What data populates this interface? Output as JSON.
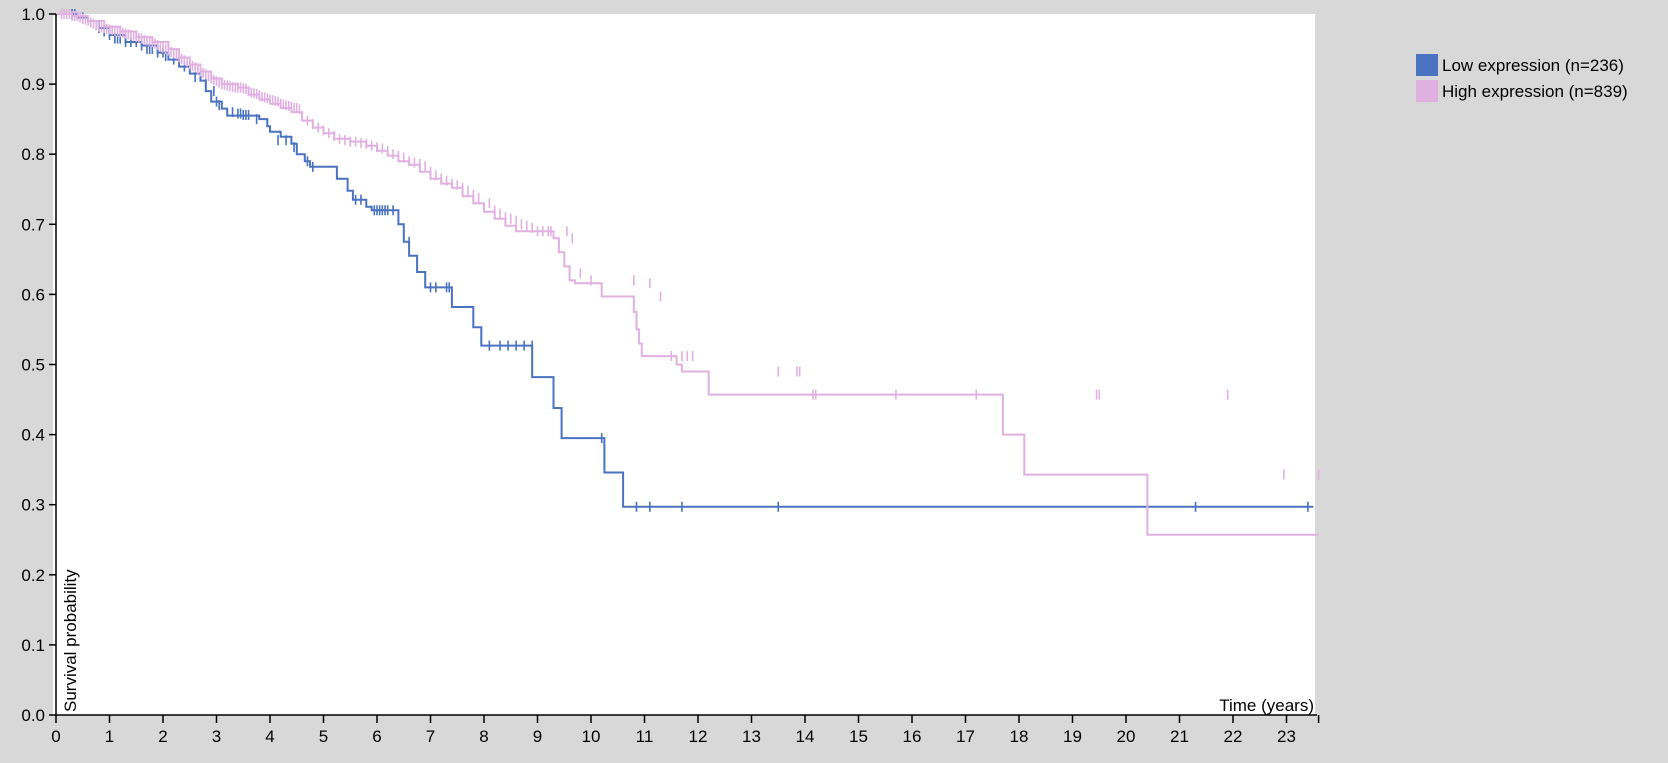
{
  "chart_data": {
    "type": "line",
    "step": true,
    "xlabel": "Time (years)",
    "ylabel": "Survival probability",
    "xlim": [
      0,
      23.6
    ],
    "ylim": [
      0,
      1
    ],
    "x_ticks": [
      "0",
      "1",
      "2",
      "3",
      "4",
      "5",
      "6",
      "7",
      "8",
      "9",
      "10",
      "11",
      "12",
      "13",
      "14",
      "15",
      "16",
      "17",
      "18",
      "19",
      "20",
      "21",
      "22",
      "23"
    ],
    "y_ticks": [
      "0.0",
      "0.1",
      "0.2",
      "0.3",
      "0.4",
      "0.5",
      "0.6",
      "0.7",
      "0.8",
      "0.9",
      "1.0"
    ],
    "legend_position": "top-right, outside plot",
    "series": [
      {
        "name": "Low expression (n=236)",
        "color": "#4a72c0",
        "points": [
          [
            0,
            1.0
          ],
          [
            0.4,
            0.995
          ],
          [
            0.6,
            0.99
          ],
          [
            0.8,
            0.98
          ],
          [
            1.0,
            0.97
          ],
          [
            1.3,
            0.96
          ],
          [
            1.6,
            0.955
          ],
          [
            1.9,
            0.945
          ],
          [
            2.1,
            0.935
          ],
          [
            2.3,
            0.925
          ],
          [
            2.5,
            0.915
          ],
          [
            2.7,
            0.905
          ],
          [
            2.8,
            0.89
          ],
          [
            2.9,
            0.875
          ],
          [
            3.1,
            0.865
          ],
          [
            3.2,
            0.855
          ],
          [
            3.8,
            0.85
          ],
          [
            3.95,
            0.84
          ],
          [
            4.0,
            0.832
          ],
          [
            4.2,
            0.825
          ],
          [
            4.4,
            0.815
          ],
          [
            4.5,
            0.8
          ],
          [
            4.65,
            0.79
          ],
          [
            4.75,
            0.782
          ],
          [
            5.25,
            0.765
          ],
          [
            5.45,
            0.748
          ],
          [
            5.55,
            0.735
          ],
          [
            5.8,
            0.725
          ],
          [
            5.9,
            0.72
          ],
          [
            6.4,
            0.7
          ],
          [
            6.5,
            0.675
          ],
          [
            6.6,
            0.655
          ],
          [
            6.75,
            0.632
          ],
          [
            6.9,
            0.61
          ],
          [
            7.4,
            0.582
          ],
          [
            7.8,
            0.553
          ],
          [
            7.95,
            0.527
          ],
          [
            8.9,
            0.482
          ],
          [
            9.3,
            0.438
          ],
          [
            9.45,
            0.395
          ],
          [
            10.25,
            0.346
          ],
          [
            10.6,
            0.297
          ],
          [
            23.5,
            0.297
          ]
        ],
        "censor_x": [
          0.3,
          0.35,
          0.5,
          0.8,
          0.9,
          1.0,
          1.1,
          1.15,
          1.2,
          1.3,
          1.4,
          1.5,
          1.6,
          1.7,
          1.75,
          1.8,
          1.9,
          2.0,
          2.05,
          2.2,
          2.4,
          2.6,
          2.8,
          2.95,
          3.0,
          3.05,
          3.3,
          3.4,
          3.45,
          3.5,
          3.55,
          3.6,
          3.75,
          4.15,
          4.3,
          4.45,
          4.7,
          4.8,
          5.6,
          5.7,
          5.95,
          6.0,
          6.05,
          6.1,
          6.15,
          6.2,
          6.3,
          6.6,
          7.0,
          7.1,
          7.3,
          7.35,
          8.1,
          8.3,
          8.45,
          8.6,
          8.75,
          8.9,
          10.2,
          10.85,
          11.1,
          11.7,
          13.5,
          21.3,
          23.4
        ],
        "censor_y": [
          1.0,
          1.0,
          0.995,
          0.98,
          0.975,
          0.97,
          0.965,
          0.965,
          0.965,
          0.96,
          0.96,
          0.96,
          0.955,
          0.95,
          0.95,
          0.95,
          0.945,
          0.945,
          0.94,
          0.935,
          0.925,
          0.91,
          0.9,
          0.89,
          0.875,
          0.87,
          0.86,
          0.858,
          0.858,
          0.856,
          0.856,
          0.856,
          0.85,
          0.82,
          0.82,
          0.81,
          0.79,
          0.782,
          0.735,
          0.735,
          0.72,
          0.72,
          0.72,
          0.72,
          0.72,
          0.72,
          0.72,
          0.675,
          0.61,
          0.61,
          0.61,
          0.61,
          0.527,
          0.527,
          0.527,
          0.527,
          0.527,
          0.527,
          0.395,
          0.297,
          0.297,
          0.297,
          0.297,
          0.297,
          0.297
        ]
      },
      {
        "name": "High expression (n=839)",
        "color": "#e0b0e0",
        "points": [
          [
            0,
            1.0
          ],
          [
            0.3,
            0.997
          ],
          [
            0.6,
            0.99
          ],
          [
            0.9,
            0.982
          ],
          [
            1.2,
            0.975
          ],
          [
            1.5,
            0.967
          ],
          [
            1.8,
            0.96
          ],
          [
            2.1,
            0.95
          ],
          [
            2.3,
            0.938
          ],
          [
            2.5,
            0.928
          ],
          [
            2.7,
            0.918
          ],
          [
            2.9,
            0.908
          ],
          [
            3.1,
            0.9
          ],
          [
            3.4,
            0.895
          ],
          [
            3.6,
            0.885
          ],
          [
            3.8,
            0.878
          ],
          [
            4.0,
            0.872
          ],
          [
            4.2,
            0.866
          ],
          [
            4.4,
            0.86
          ],
          [
            4.6,
            0.848
          ],
          [
            4.8,
            0.838
          ],
          [
            5.0,
            0.83
          ],
          [
            5.2,
            0.822
          ],
          [
            5.5,
            0.818
          ],
          [
            5.8,
            0.812
          ],
          [
            6.0,
            0.805
          ],
          [
            6.2,
            0.798
          ],
          [
            6.4,
            0.79
          ],
          [
            6.6,
            0.785
          ],
          [
            6.8,
            0.775
          ],
          [
            7.0,
            0.765
          ],
          [
            7.2,
            0.758
          ],
          [
            7.4,
            0.752
          ],
          [
            7.6,
            0.74
          ],
          [
            7.8,
            0.73
          ],
          [
            8.0,
            0.718
          ],
          [
            8.2,
            0.708
          ],
          [
            8.4,
            0.698
          ],
          [
            8.6,
            0.69
          ],
          [
            9.3,
            0.68
          ],
          [
            9.4,
            0.66
          ],
          [
            9.5,
            0.64
          ],
          [
            9.6,
            0.62
          ],
          [
            9.7,
            0.616
          ],
          [
            10.2,
            0.597
          ],
          [
            10.8,
            0.575
          ],
          [
            10.85,
            0.55
          ],
          [
            10.9,
            0.53
          ],
          [
            10.95,
            0.512
          ],
          [
            11.6,
            0.5
          ],
          [
            11.7,
            0.49
          ],
          [
            12.2,
            0.457
          ],
          [
            17.7,
            0.4
          ],
          [
            18.1,
            0.343
          ],
          [
            20.4,
            0.257
          ],
          [
            23.6,
            0.257
          ]
        ],
        "censor_x": [
          0.1,
          0.15,
          0.2,
          0.25,
          0.3,
          0.35,
          0.4,
          0.45,
          0.5,
          0.55,
          0.6,
          0.65,
          0.7,
          0.75,
          0.8,
          0.85,
          0.9,
          0.95,
          1.0,
          1.05,
          1.1,
          1.15,
          1.2,
          1.25,
          1.3,
          1.35,
          1.4,
          1.45,
          1.5,
          1.55,
          1.6,
          1.65,
          1.7,
          1.75,
          1.8,
          1.85,
          1.9,
          1.95,
          2.0,
          2.05,
          2.1,
          2.15,
          2.2,
          2.25,
          2.3,
          2.35,
          2.4,
          2.45,
          2.5,
          2.55,
          2.6,
          2.65,
          2.7,
          2.75,
          2.8,
          2.85,
          2.9,
          2.95,
          3.0,
          3.05,
          3.1,
          3.15,
          3.2,
          3.25,
          3.3,
          3.35,
          3.4,
          3.45,
          3.5,
          3.55,
          3.6,
          3.65,
          3.7,
          3.75,
          3.8,
          3.85,
          3.9,
          3.95,
          4.0,
          4.05,
          4.1,
          4.15,
          4.2,
          4.25,
          4.3,
          4.35,
          4.4,
          4.45,
          4.5,
          4.55,
          4.7,
          4.8,
          4.9,
          5.0,
          5.1,
          5.2,
          5.3,
          5.4,
          5.5,
          5.6,
          5.7,
          5.8,
          5.9,
          6.0,
          6.1,
          6.2,
          6.3,
          6.4,
          6.5,
          6.6,
          6.7,
          6.8,
          6.9,
          7.0,
          7.1,
          7.2,
          7.3,
          7.4,
          7.5,
          7.6,
          7.7,
          7.8,
          7.9,
          8.1,
          8.2,
          8.3,
          8.4,
          8.5,
          8.6,
          8.7,
          8.8,
          8.9,
          9.0,
          9.1,
          9.2,
          9.25,
          9.55,
          9.65,
          9.8,
          10.0,
          10.8,
          11.1,
          11.3,
          11.5,
          11.7,
          11.8,
          11.9,
          13.5,
          13.85,
          13.9,
          14.15,
          14.2,
          15.7,
          17.2,
          19.45,
          19.5,
          21.9,
          22.95,
          23.6
        ],
        "censor_y": [
          1.0,
          1.0,
          1.0,
          1.0,
          0.997,
          0.997,
          0.997,
          0.995,
          0.993,
          0.992,
          0.99,
          0.988,
          0.986,
          0.984,
          0.982,
          0.981,
          0.98,
          0.979,
          0.978,
          0.977,
          0.976,
          0.975,
          0.974,
          0.973,
          0.972,
          0.971,
          0.97,
          0.969,
          0.967,
          0.966,
          0.965,
          0.963,
          0.962,
          0.961,
          0.96,
          0.958,
          0.956,
          0.954,
          0.952,
          0.95,
          0.948,
          0.946,
          0.944,
          0.942,
          0.938,
          0.936,
          0.934,
          0.932,
          0.928,
          0.926,
          0.924,
          0.921,
          0.918,
          0.916,
          0.914,
          0.911,
          0.908,
          0.906,
          0.904,
          0.902,
          0.9,
          0.899,
          0.898,
          0.897,
          0.896,
          0.895,
          0.895,
          0.895,
          0.894,
          0.893,
          0.89,
          0.888,
          0.887,
          0.886,
          0.884,
          0.882,
          0.881,
          0.88,
          0.878,
          0.877,
          0.876,
          0.875,
          0.872,
          0.871,
          0.87,
          0.869,
          0.868,
          0.866,
          0.866,
          0.864,
          0.848,
          0.843,
          0.838,
          0.834,
          0.83,
          0.826,
          0.822,
          0.82,
          0.818,
          0.818,
          0.816,
          0.815,
          0.812,
          0.81,
          0.808,
          0.805,
          0.8,
          0.798,
          0.795,
          0.79,
          0.788,
          0.786,
          0.783,
          0.775,
          0.77,
          0.765,
          0.762,
          0.758,
          0.756,
          0.752,
          0.748,
          0.742,
          0.738,
          0.73,
          0.72,
          0.715,
          0.71,
          0.708,
          0.705,
          0.7,
          0.698,
          0.695,
          0.69,
          0.69,
          0.69,
          0.69,
          0.69,
          0.68,
          0.63,
          0.62,
          0.62,
          0.616,
          0.597,
          0.512,
          0.512,
          0.512,
          0.512,
          0.49,
          0.49,
          0.49,
          0.457,
          0.457,
          0.457,
          0.457,
          0.457,
          0.457,
          0.457,
          0.343,
          0.343,
          0.257,
          0.257,
          0.257
        ]
      }
    ]
  }
}
